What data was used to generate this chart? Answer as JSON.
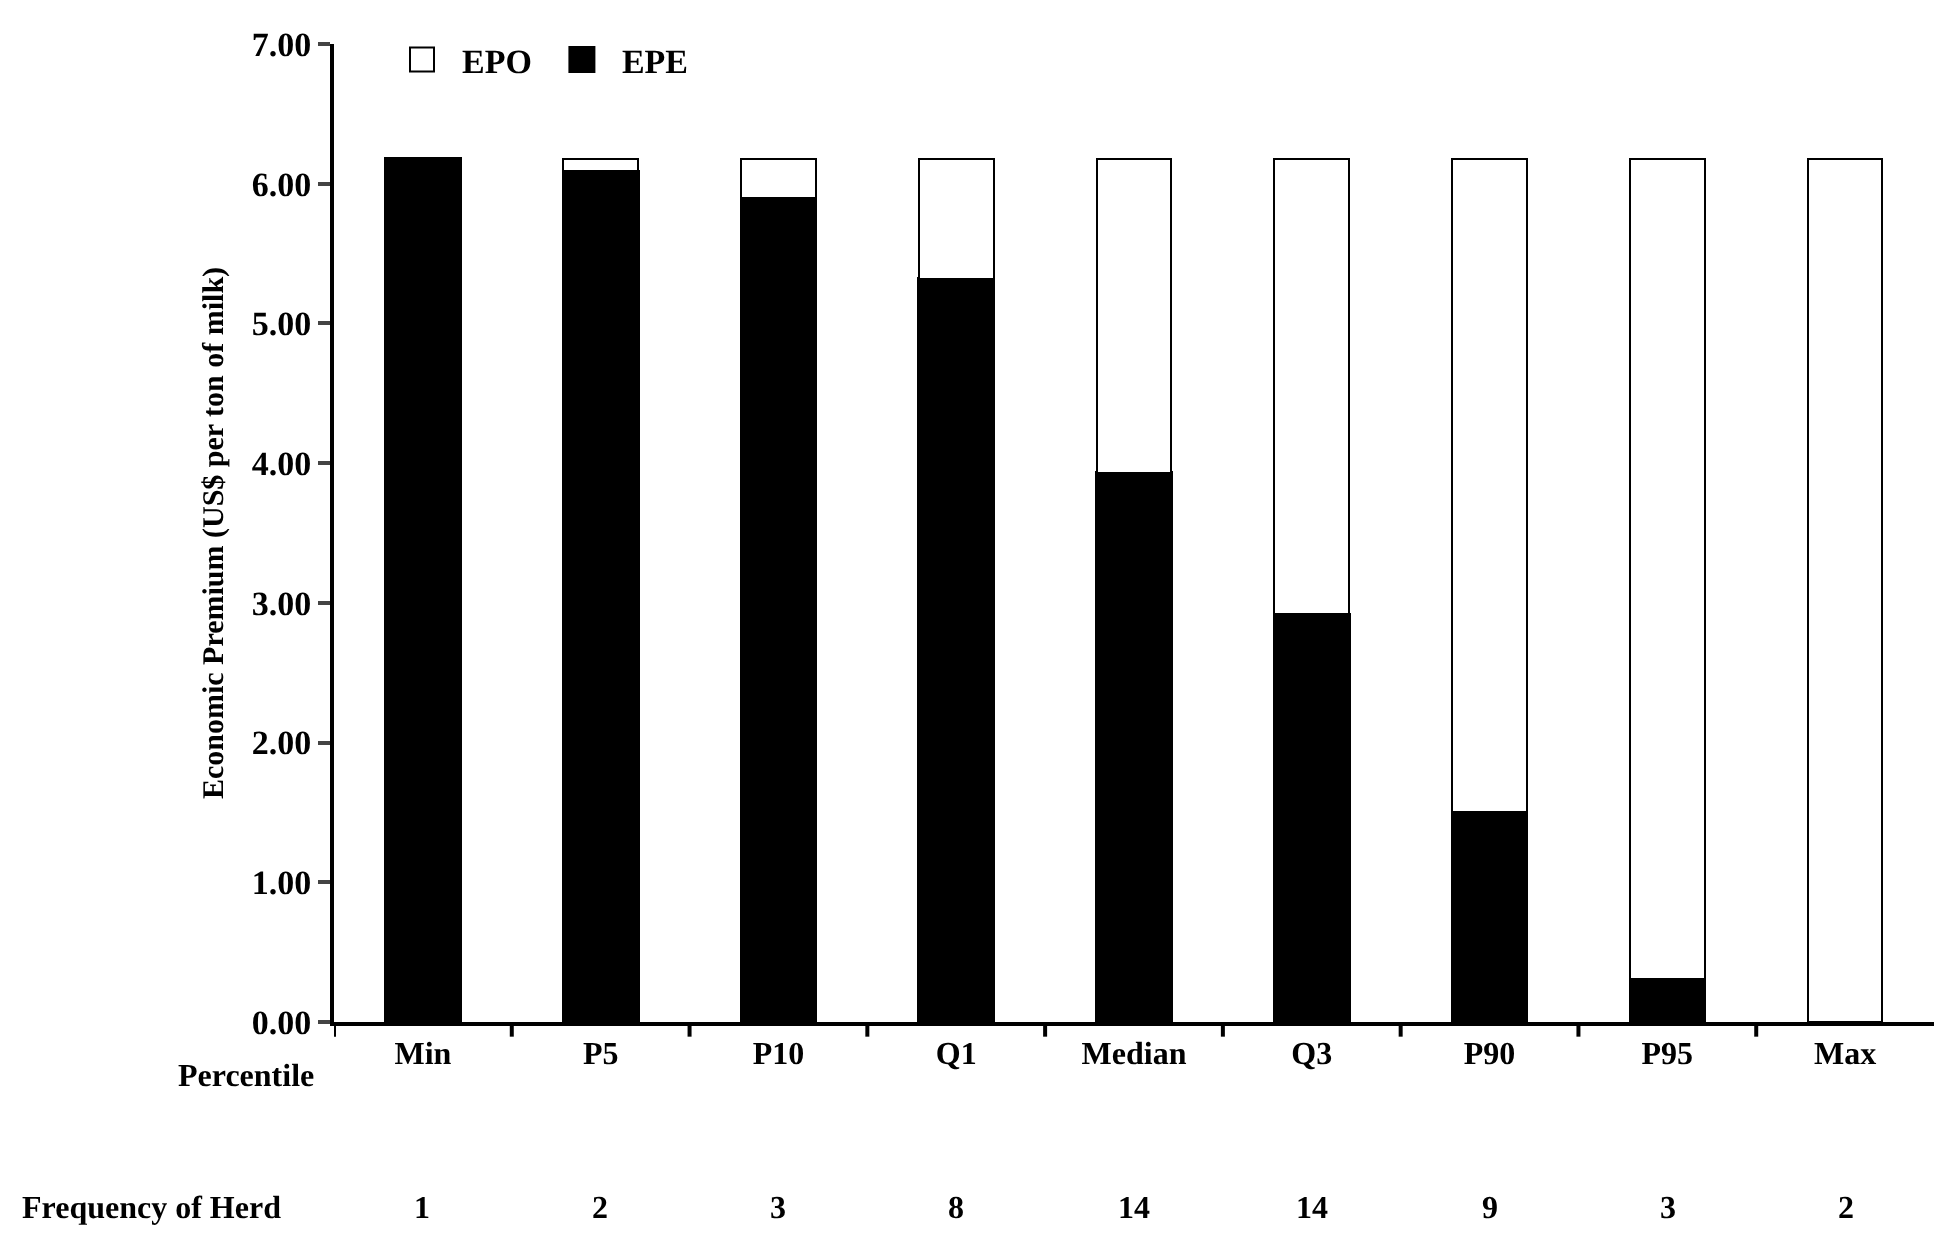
{
  "chart_data": {
    "type": "bar",
    "stacked": true,
    "xlabel": "Percentile",
    "ylabel": "Economic Premium (US$ per ton of milk)",
    "categories": [
      "Min",
      "P5",
      "P10",
      "Q1",
      "Median",
      "Q3",
      "P90",
      "P95",
      "Max"
    ],
    "series": [
      {
        "name": "EPE",
        "color": "#000000",
        "values": [
          6.18,
          6.09,
          5.9,
          5.32,
          3.93,
          2.92,
          1.5,
          0.31,
          null
        ]
      },
      {
        "name": "EPO",
        "color": "#ffffff",
        "values": [
          null,
          0.09,
          0.28,
          0.86,
          2.25,
          3.26,
          4.68,
          5.87,
          6.18
        ]
      }
    ],
    "ylim": [
      0,
      7
    ],
    "yticks": [
      {
        "value": 0,
        "label": "0.00"
      },
      {
        "value": 1,
        "label": "1.00"
      },
      {
        "value": 2,
        "label": "2.00"
      },
      {
        "value": 3,
        "label": "3.00"
      },
      {
        "value": 4,
        "label": "4.00"
      },
      {
        "value": 5,
        "label": "5.00"
      },
      {
        "value": 6,
        "label": "6.00"
      },
      {
        "value": 7,
        "label": "7.00"
      }
    ],
    "legend": "top left",
    "annotations": [
      "Frequency of Herd",
      "1",
      "2",
      "3",
      "8",
      "14",
      "14",
      "9",
      "3",
      "2"
    ]
  }
}
